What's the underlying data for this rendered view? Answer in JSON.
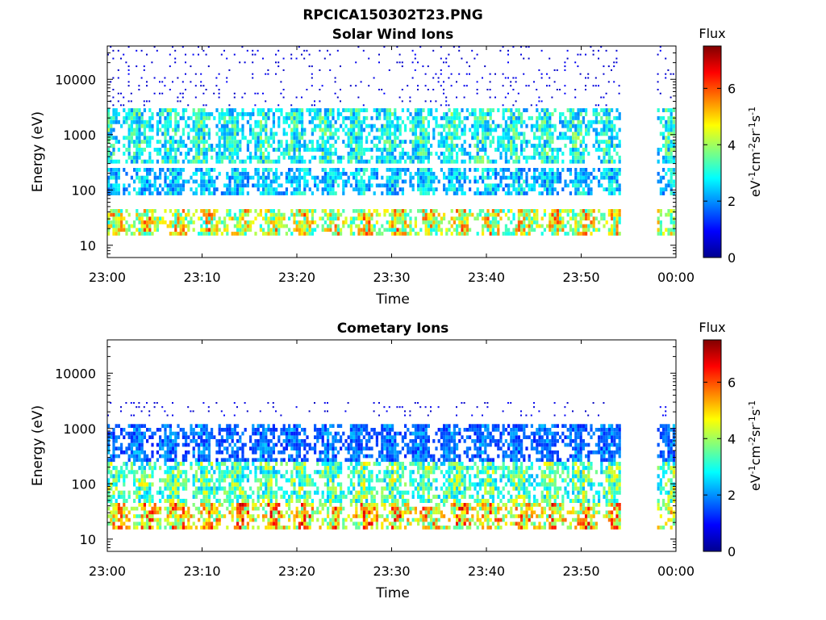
{
  "figure_title": "RPCICA150302T23.PNG",
  "chart_data": [
    {
      "type": "heatmap",
      "title": "Solar Wind Ions",
      "xlabel": "Time",
      "ylabel": "Energy (eV)",
      "y_scale": "log",
      "x_ticks": [
        "23:00",
        "23:10",
        "23:20",
        "23:30",
        "23:40",
        "23:50",
        "00:00"
      ],
      "y_ticks": [
        "10",
        "100",
        "1000",
        "10000"
      ],
      "ylim": [
        6,
        40000
      ],
      "colorbar": {
        "label": "Flux",
        "unit_label": "eV-1cm-2sr-1s-1",
        "ticks": [
          "0",
          "2",
          "4",
          "6"
        ],
        "range": [
          0,
          7.5
        ],
        "colormap": "jet"
      },
      "bands": [
        {
          "energy_range": [
            15,
            45
          ],
          "peak_flux": 6.3,
          "description": "intermittent high-flux bursts at low energy"
        },
        {
          "energy_range": [
            80,
            250
          ],
          "peak_flux": 3.5
        },
        {
          "energy_range": [
            300,
            3000
          ],
          "peak_flux": 4.2
        },
        {
          "energy_range": [
            3000,
            40000
          ],
          "peak_flux": 1.0,
          "description": "sparse isolated points"
        }
      ],
      "data_gaps": [
        [
          "23:54",
          "23:58"
        ]
      ]
    },
    {
      "type": "heatmap",
      "title": "Cometary Ions",
      "xlabel": "Time",
      "ylabel": "Energy (eV)",
      "y_scale": "log",
      "x_ticks": [
        "23:00",
        "23:10",
        "23:20",
        "23:30",
        "23:40",
        "23:50",
        "00:00"
      ],
      "y_ticks": [
        "10",
        "100",
        "1000",
        "10000"
      ],
      "ylim": [
        6,
        40000
      ],
      "colorbar": {
        "label": "Flux",
        "unit_label": "eV-1cm-2sr-1s-1",
        "ticks": [
          "0",
          "2",
          "4",
          "6"
        ],
        "range": [
          0,
          7.5
        ],
        "colormap": "jet"
      },
      "bands": [
        {
          "energy_range": [
            15,
            45
          ],
          "peak_flux": 7.0,
          "description": "dense high-flux band"
        },
        {
          "energy_range": [
            45,
            250
          ],
          "peak_flux": 5.0
        },
        {
          "energy_range": [
            250,
            1200
          ],
          "peak_flux": 2.5
        },
        {
          "energy_range": [
            1500,
            3000
          ],
          "peak_flux": 1.0,
          "description": "sparse blue line segments"
        }
      ],
      "data_gaps": [
        [
          "23:54",
          "23:58"
        ]
      ]
    }
  ]
}
